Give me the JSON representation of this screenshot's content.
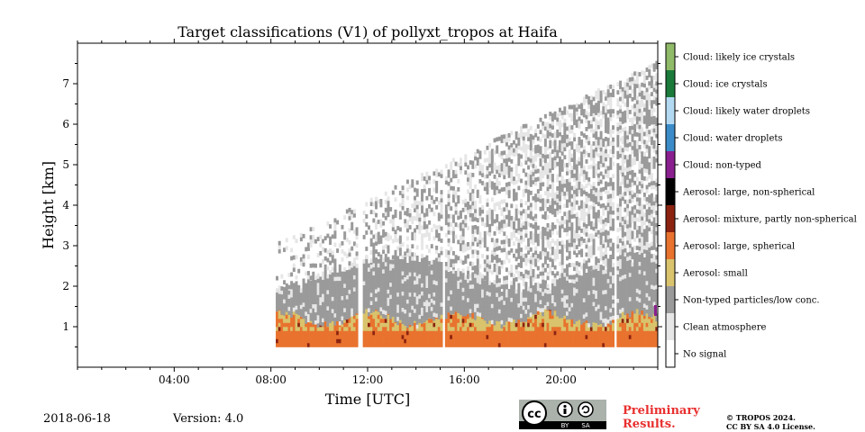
{
  "chart_data": {
    "type": "heatmap",
    "title": "Target classifications (V1) of pollyxt_tropos at Haifa",
    "xlabel": "Time [UTC]",
    "ylabel": "Height [km]",
    "x_ticks": [
      "04:00",
      "08:00",
      "12:00",
      "16:00",
      "20:00"
    ],
    "x_tick_hours": [
      4,
      8,
      12,
      16,
      20
    ],
    "xlim_hours": [
      0,
      24
    ],
    "y_ticks": [
      1,
      2,
      3,
      4,
      5,
      6,
      7
    ],
    "ylim_km": [
      0,
      8
    ],
    "colorbar": [
      {
        "label": "No signal",
        "color": "#ffffff"
      },
      {
        "label": "Clean atmosphere",
        "color": "#e6e6e6"
      },
      {
        "label": "Non-typed particles/low conc.",
        "color": "#9a9a9a"
      },
      {
        "label": "Aerosol: small",
        "color": "#d9c36c"
      },
      {
        "label": "Aerosol: large, spherical",
        "color": "#e8722e"
      },
      {
        "label": "Aerosol: mixture, partly non-spherical",
        "color": "#8b2310"
      },
      {
        "label": "Aerosol: large, non-spherical",
        "color": "#000000"
      },
      {
        "label": "Cloud: non-typed",
        "color": "#8a1f8f"
      },
      {
        "label": "Cloud: water droplets",
        "color": "#3b8bc9"
      },
      {
        "label": "Cloud: likely water droplets",
        "color": "#b3d9f2"
      },
      {
        "label": "Cloud: ice crystals",
        "color": "#1a7a3a"
      },
      {
        "label": "Cloud: likely ice crystals",
        "color": "#8fba68"
      }
    ],
    "data_start_hour": 8.2,
    "data_gaps_hours": [
      [
        11.55,
        11.7
      ],
      [
        15.0,
        15.1
      ],
      [
        22.15,
        22.25
      ]
    ],
    "layers_km": {
      "aerosol_base": 0.5,
      "aerosol_top_approx": 1.2,
      "non_typed_top_approx": 2.3
    }
  },
  "footer": {
    "date": "2018-06-18",
    "version": "Version: 4.0",
    "preliminary_1": "Preliminary",
    "preliminary_2": "Results.",
    "copyright_1": "© TROPOS 2024.",
    "copyright_2": "CC BY SA 4.0 License.",
    "cc_text": "cc",
    "cc_by": "BY",
    "cc_sa": "SA"
  }
}
